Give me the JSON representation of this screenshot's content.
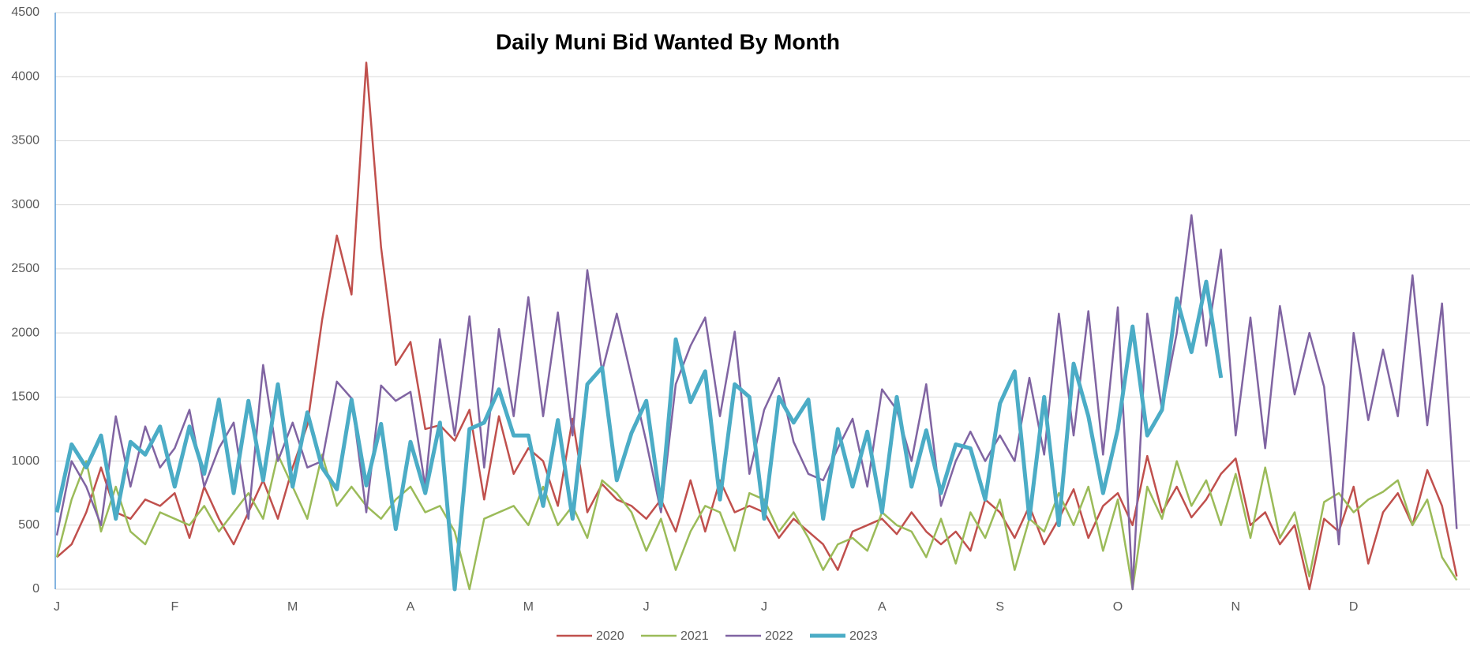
{
  "chart_data": {
    "type": "line",
    "title": "Daily Muni Bid Wanted By Month",
    "categories": [
      "J",
      null,
      null,
      null,
      null,
      null,
      null,
      null,
      "F",
      null,
      null,
      null,
      null,
      null,
      null,
      null,
      "M",
      null,
      null,
      null,
      null,
      null,
      null,
      null,
      "A",
      null,
      null,
      null,
      null,
      null,
      null,
      null,
      "M",
      null,
      null,
      null,
      null,
      null,
      null,
      null,
      "J",
      null,
      null,
      null,
      null,
      null,
      null,
      null,
      "J",
      null,
      null,
      null,
      null,
      null,
      null,
      null,
      "A",
      null,
      null,
      null,
      null,
      null,
      null,
      null,
      "S",
      null,
      null,
      null,
      null,
      null,
      null,
      null,
      "O",
      null,
      null,
      null,
      null,
      null,
      null,
      null,
      "N",
      null,
      null,
      null,
      null,
      null,
      null,
      null,
      "D",
      null,
      null,
      null,
      null,
      null,
      null,
      null
    ],
    "ylim": [
      0,
      4500
    ],
    "yticks": [
      0,
      500,
      1000,
      1500,
      2000,
      2500,
      3000,
      3500,
      4000,
      4500
    ],
    "grid": true,
    "legend": "bottom",
    "series": [
      {
        "name": "2020",
        "color": "#c0504d",
        "width": 2.5,
        "values": [
          250,
          350,
          600,
          950,
          600,
          550,
          700,
          650,
          750,
          400,
          800,
          550,
          350,
          600,
          850,
          550,
          950,
          1280,
          2100,
          2760,
          2300,
          4110,
          2670,
          1750,
          1930,
          1250,
          1280,
          1160,
          1400,
          700,
          1350,
          900,
          1100,
          1000,
          650,
          1330,
          600,
          820,
          700,
          650,
          550,
          700,
          450,
          850,
          450,
          850,
          600,
          650,
          600,
          400,
          550,
          450,
          350,
          150,
          450,
          500,
          550,
          430,
          600,
          450,
          350,
          450,
          300,
          700,
          600,
          400,
          650,
          350,
          550,
          780,
          400,
          650,
          750,
          500,
          1040,
          600,
          800,
          560,
          700,
          900,
          1020,
          500,
          600,
          350,
          500,
          0,
          550,
          450,
          800,
          200,
          600,
          750,
          500,
          930,
          650,
          100
        ]
      },
      {
        "name": "2021",
        "color": "#9bbb59",
        "width": 2.5,
        "values": [
          250,
          700,
          1000,
          450,
          800,
          450,
          350,
          600,
          550,
          500,
          650,
          450,
          600,
          750,
          550,
          1050,
          800,
          550,
          1050,
          650,
          800,
          650,
          550,
          700,
          800,
          600,
          650,
          450,
          0,
          550,
          600,
          650,
          500,
          800,
          500,
          650,
          400,
          850,
          750,
          600,
          300,
          550,
          150,
          450,
          650,
          600,
          300,
          750,
          700,
          450,
          600,
          400,
          150,
          350,
          400,
          300,
          600,
          500,
          450,
          250,
          550,
          200,
          600,
          400,
          700,
          150,
          550,
          450,
          750,
          500,
          800,
          300,
          700,
          0,
          800,
          550,
          1000,
          650,
          850,
          500,
          900,
          400,
          950,
          400,
          600,
          100,
          680,
          750,
          600,
          700,
          760,
          850,
          500,
          700,
          250,
          70
        ]
      },
      {
        "name": "2022",
        "color": "#8064a2",
        "width": 2.5,
        "values": [
          420,
          1000,
          800,
          500,
          1350,
          800,
          1270,
          950,
          1100,
          1400,
          800,
          1100,
          1300,
          550,
          1750,
          1000,
          1300,
          950,
          1000,
          1620,
          1490,
          600,
          1590,
          1470,
          1540,
          800,
          1950,
          1200,
          2130,
          950,
          2030,
          1350,
          2280,
          1350,
          2160,
          1200,
          2490,
          1700,
          2150,
          1650,
          1150,
          600,
          1600,
          1900,
          2120,
          1350,
          2010,
          900,
          1400,
          1650,
          1150,
          900,
          850,
          1100,
          1330,
          800,
          1560,
          1400,
          1000,
          1600,
          650,
          1000,
          1230,
          1000,
          1200,
          1000,
          1650,
          1050,
          2150,
          1200,
          2170,
          1050,
          2200,
          0,
          2150,
          1400,
          2000,
          2920,
          1900,
          2650,
          1200,
          2120,
          1100,
          2210,
          1520,
          2000,
          1580,
          350,
          2000,
          1320,
          1870,
          1350,
          2450,
          1280,
          2230,
          470
        ]
      },
      {
        "name": "2023",
        "color": "#4bacc6",
        "width": 5,
        "values": [
          600,
          1130,
          950,
          1200,
          550,
          1150,
          1050,
          1270,
          800,
          1270,
          900,
          1480,
          750,
          1470,
          850,
          1600,
          800,
          1380,
          950,
          780,
          1480,
          810,
          1290,
          470,
          1150,
          750,
          1300,
          0,
          1250,
          1300,
          1560,
          1200,
          1200,
          650,
          1320,
          550,
          1600,
          1730,
          850,
          1220,
          1470,
          650,
          1950,
          1460,
          1700,
          700,
          1600,
          1500,
          550,
          1500,
          1300,
          1480,
          550,
          1250,
          800,
          1230,
          600,
          1500,
          800,
          1240,
          750,
          1130,
          1100,
          700,
          1450,
          1700,
          550,
          1500,
          500,
          1760,
          1350,
          750,
          1250,
          2050,
          1200,
          1400,
          2270,
          1850,
          2400,
          1650,
          null,
          null,
          null,
          null,
          null,
          null,
          null,
          null,
          null,
          null,
          null,
          null,
          null,
          null,
          null,
          null
        ]
      }
    ]
  }
}
